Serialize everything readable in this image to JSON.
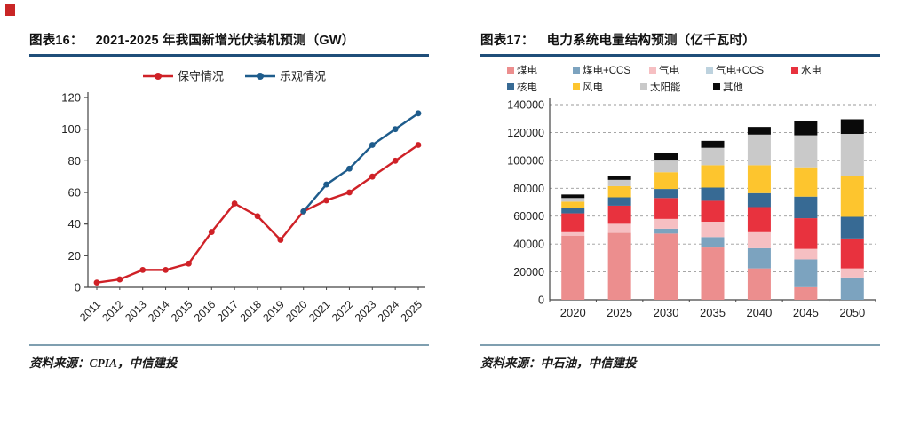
{
  "page": {
    "corner_mark_color": "#c00000"
  },
  "left_panel": {
    "figure_label": "图表16：",
    "title": "2021-2025 年我国新增光伏装机预测（GW）",
    "source_label": "资料来源：",
    "source": "CPIA，中信建投"
  },
  "right_panel": {
    "figure_label": "图表17：",
    "title": "电力系统电量结构预测（亿千瓦时）",
    "source_label": "资料来源：",
    "source": "中石油，中信建投"
  },
  "chart_data": [
    {
      "type": "line",
      "title": "2021-2025 年我国新增光伏装机预测（GW）",
      "x": [
        "2011",
        "2012",
        "2013",
        "2014",
        "2015",
        "2016",
        "2017",
        "2018",
        "2019",
        "2020",
        "2021",
        "2022",
        "2023",
        "2024",
        "2025"
      ],
      "series": [
        {
          "name": "保守情况",
          "color": "#cf2127",
          "values": [
            3,
            5,
            11,
            11,
            15,
            35,
            53,
            45,
            30,
            48,
            55,
            60,
            70,
            80,
            90
          ]
        },
        {
          "name": "乐观情况",
          "color": "#1e5c8c",
          "values": [
            null,
            null,
            null,
            null,
            null,
            null,
            null,
            null,
            null,
            48,
            65,
            75,
            90,
            100,
            110
          ]
        }
      ],
      "ylim": [
        0,
        120
      ],
      "ytick": 20,
      "grid": false,
      "legend_position": "top"
    },
    {
      "type": "stacked-bar",
      "title": "电力系统电量结构预测（亿千瓦时）",
      "categories": [
        "2020",
        "2025",
        "2030",
        "2035",
        "2040",
        "2045",
        "2050"
      ],
      "series": [
        {
          "name": "煤电",
          "color": "#ec8e8e",
          "values": [
            46000,
            48000,
            47500,
            37500,
            22500,
            9000,
            0
          ]
        },
        {
          "name": "煤电+CCS",
          "color": "#7ca3bf",
          "values": [
            0,
            0,
            3500,
            7500,
            14500,
            20000,
            16000
          ]
        },
        {
          "name": "气电",
          "color": "#f6bfc2",
          "values": [
            2500,
            6500,
            7000,
            11000,
            11500,
            7500,
            6500
          ]
        },
        {
          "name": "气电+CCS",
          "color": "#bdd2de",
          "values": [
            0,
            0,
            0,
            0,
            0,
            0,
            0
          ]
        },
        {
          "name": "水电",
          "color": "#e8323e",
          "values": [
            13500,
            13000,
            15000,
            15000,
            18000,
            22000,
            21500
          ]
        },
        {
          "name": "核电",
          "color": "#376a94",
          "values": [
            3700,
            6000,
            6500,
            9500,
            10000,
            15500,
            15500
          ]
        },
        {
          "name": "风电",
          "color": "#fdc52e",
          "values": [
            4700,
            8000,
            12000,
            16000,
            20000,
            21000,
            29500
          ]
        },
        {
          "name": "太阳能",
          "color": "#c9c9c9",
          "values": [
            2600,
            4500,
            9000,
            12500,
            22000,
            23000,
            30000
          ]
        },
        {
          "name": "其他",
          "color": "#0a0a0a",
          "values": [
            2500,
            2500,
            4500,
            5000,
            5500,
            10500,
            10500
          ]
        }
      ],
      "ylim": [
        0,
        140000
      ],
      "ytick": 20000,
      "grid": true,
      "legend_position": "top"
    }
  ]
}
